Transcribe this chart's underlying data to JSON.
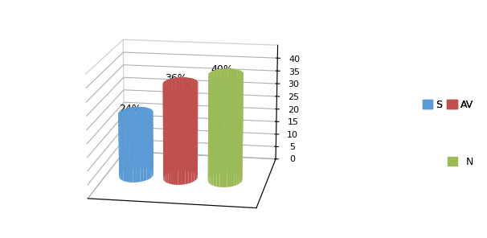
{
  "categories": [
    "S",
    "AV",
    "N"
  ],
  "values": [
    24,
    36,
    40
  ],
  "labels": [
    "24%",
    "36%",
    "40%"
  ],
  "bar_colors_face": [
    "#5B9BD5",
    "#C0504D",
    "#9BBB59"
  ],
  "bar_colors_side": [
    "#3A7BBF",
    "#A03030",
    "#78A030"
  ],
  "bar_colors_top": [
    "#7AB3E8",
    "#D47070",
    "#C0D860"
  ],
  "background_color": "#FFFFFF",
  "zlim": [
    0,
    45
  ],
  "zticks": [
    0,
    5,
    10,
    15,
    20,
    25,
    30,
    35,
    40
  ],
  "legend_labels_row1": [
    "S",
    "AV"
  ],
  "legend_labels_row2": [
    "N"
  ],
  "legend_colors": [
    "#5B9BD5",
    "#C0504D",
    "#9BBB59"
  ],
  "label_fontsize": 9,
  "tick_fontsize": 8,
  "legend_fontsize": 9
}
